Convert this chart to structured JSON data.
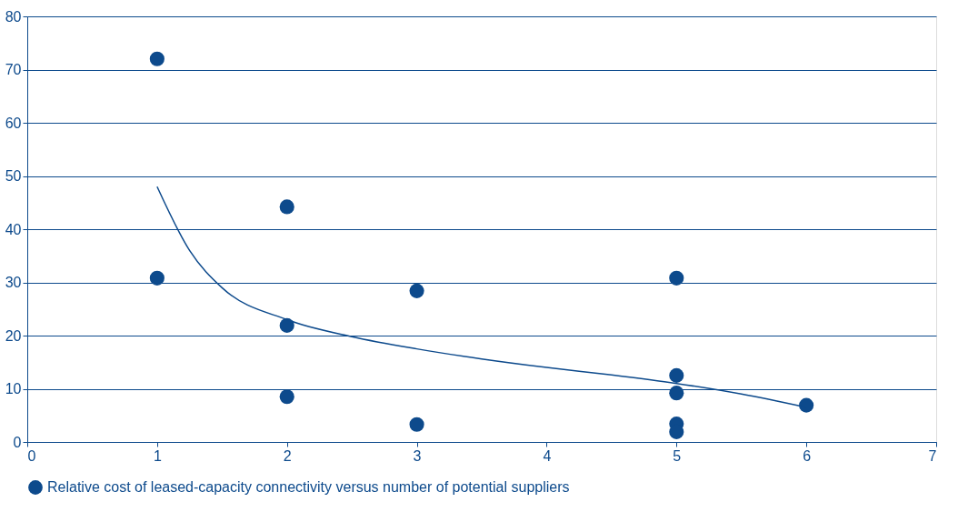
{
  "chart_data": {
    "type": "scatter",
    "series": [
      {
        "name": "Relative cost of leased-capacity connectivity versus number of potential suppliers",
        "color": "#0d4a8c",
        "marker": "circle",
        "x": [
          1,
          1,
          2,
          2,
          2,
          3,
          3,
          5,
          5,
          5,
          5,
          5,
          6
        ],
        "values": [
          72,
          30.8,
          44.2,
          21.9,
          8.5,
          28.4,
          3.3,
          30.8,
          12.5,
          9.2,
          3.4,
          1.9,
          6.9
        ]
      },
      {
        "type": "line",
        "color": "#0d4a8c",
        "x": [
          1,
          1.25,
          1.5,
          2,
          2.5,
          3,
          3.5,
          4,
          4.5,
          5,
          5.5,
          6
        ],
        "values": [
          48,
          36,
          29,
          23,
          19.8,
          17.5,
          15.6,
          14,
          12.6,
          11,
          9,
          6.5
        ]
      }
    ],
    "xlim": [
      0,
      7
    ],
    "xticks": [
      0,
      1,
      2,
      3,
      4,
      5,
      6,
      7
    ],
    "ylim": [
      0,
      80
    ],
    "yticks": [
      0,
      10,
      20,
      30,
      40,
      50,
      60,
      70,
      80
    ],
    "grid": "y",
    "legend": "bottom left"
  }
}
